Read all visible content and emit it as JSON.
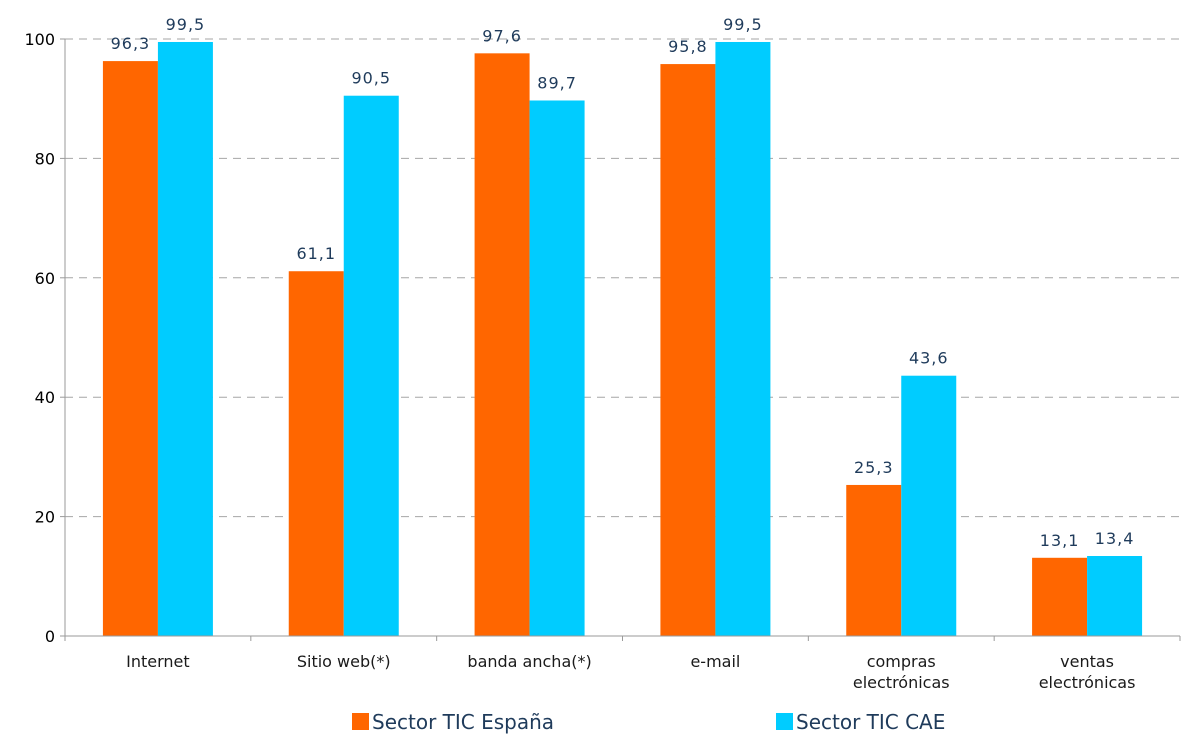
{
  "chart_data": {
    "type": "bar",
    "categories": [
      [
        "Internet"
      ],
      [
        "Sitio web(*)"
      ],
      [
        "banda ancha(*)"
      ],
      [
        "e-mail"
      ],
      [
        "compras",
        "electrónicas"
      ],
      [
        "ventas",
        "electrónicas"
      ]
    ],
    "series": [
      {
        "name": "Sector TIC España",
        "color": "#ff6600",
        "values": [
          96.3,
          61.1,
          97.6,
          95.8,
          25.3,
          13.1
        ],
        "labels": [
          "96,3",
          "61,1",
          "97,6",
          "95,8",
          "25,3",
          "13,1"
        ]
      },
      {
        "name": "Sector TIC CAE",
        "color": "#00ccff",
        "values": [
          99.5,
          90.5,
          89.7,
          99.5,
          43.6,
          13.4
        ],
        "labels": [
          "99,5",
          "90,5",
          "89,7",
          "99,5",
          "43,6",
          "13,4"
        ]
      }
    ],
    "title": "",
    "xlabel": "",
    "ylabel": "",
    "ylim": [
      0,
      100
    ],
    "yticks": [
      0,
      20,
      40,
      60,
      80,
      100
    ],
    "grid": true,
    "legend_position": "bottom"
  }
}
